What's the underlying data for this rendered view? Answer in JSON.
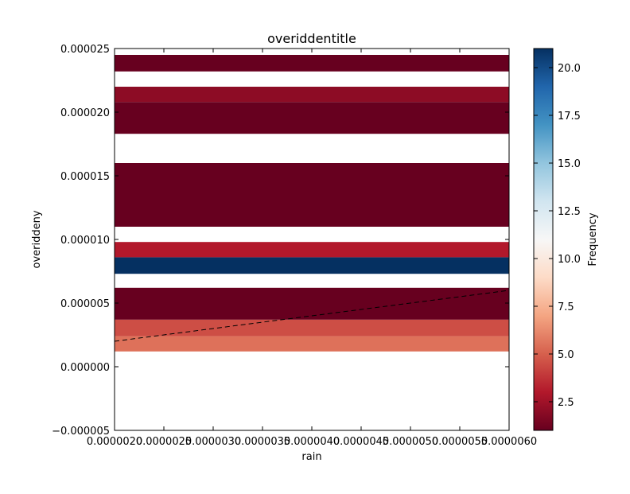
{
  "chart_data": {
    "type": "heatmap",
    "title": "overiddentitle",
    "xlabel": "rain",
    "ylabel": "overiddeny",
    "xlim": [
      2e-06,
      6e-06
    ],
    "ylim": [
      -5e-06,
      2.5e-05
    ],
    "x_ticks": [
      "0.0000020",
      "0.0000025",
      "0.0000030",
      "0.0000035",
      "0.0000040",
      "0.0000045",
      "0.0000050",
      "0.0000055",
      "0.0000060"
    ],
    "x_tick_values": [
      2e-06,
      2.5e-06,
      3e-06,
      3.5e-06,
      4e-06,
      4.5e-06,
      5e-06,
      5.5e-06,
      6e-06
    ],
    "y_ticks": [
      "−0.000005",
      "0.000000",
      "0.000005",
      "0.000010",
      "0.000015",
      "0.000020",
      "0.000025"
    ],
    "y_tick_values": [
      -5e-06,
      0,
      5e-06,
      1e-05,
      1.5e-05,
      2e-05,
      2.5e-05
    ],
    "bands": [
      {
        "y0": 1.2e-06,
        "y1": 2.4e-06,
        "value": 5.5
      },
      {
        "y0": 2.4e-06,
        "y1": 3.7e-06,
        "value": 4.5
      },
      {
        "y0": 3.7e-06,
        "y1": 6.2e-06,
        "value": 1
      },
      {
        "y0": 7.3e-06,
        "y1": 8.6e-06,
        "value": 21
      },
      {
        "y0": 8.6e-06,
        "y1": 9.8e-06,
        "value": 3
      },
      {
        "y0": 1.1e-05,
        "y1": 1.6e-05,
        "value": 1
      },
      {
        "y0": 1.83e-05,
        "y1": 2.08e-05,
        "value": 1
      },
      {
        "y0": 2.08e-05,
        "y1": 2.2e-05,
        "value": 2
      },
      {
        "y0": 2.32e-05,
        "y1": 2.45e-05,
        "value": 1
      }
    ],
    "trend_line": {
      "x": [
        2e-06,
        6e-06
      ],
      "y": [
        2e-06,
        6e-06
      ],
      "style": "dashed",
      "color": "#000000"
    },
    "colorbar": {
      "label": "Frequency",
      "range": [
        1,
        21
      ],
      "colormap": "RdBu",
      "tick_values": [
        2.5,
        5,
        7.5,
        10,
        12.5,
        15,
        17.5,
        20
      ],
      "ticks": [
        "2.5",
        "5.0",
        "7.5",
        "10.0",
        "12.5",
        "15.0",
        "17.5",
        "20.0"
      ]
    },
    "grid": false,
    "legend": "none"
  }
}
